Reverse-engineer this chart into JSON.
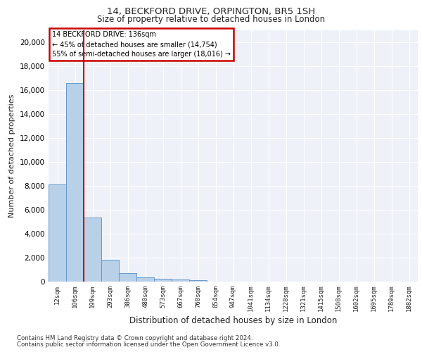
{
  "title1": "14, BECKFORD DRIVE, ORPINGTON, BR5 1SH",
  "title2": "Size of property relative to detached houses in London",
  "xlabel": "Distribution of detached houses by size in London",
  "ylabel": "Number of detached properties",
  "categories": [
    "12sqm",
    "106sqm",
    "199sqm",
    "293sqm",
    "386sqm",
    "480sqm",
    "573sqm",
    "667sqm",
    "760sqm",
    "854sqm",
    "947sqm",
    "1041sqm",
    "1134sqm",
    "1228sqm",
    "1321sqm",
    "1415sqm",
    "1508sqm",
    "1602sqm",
    "1695sqm",
    "1789sqm",
    "1882sqm"
  ],
  "values": [
    8100,
    16550,
    5350,
    1850,
    680,
    330,
    210,
    170,
    130,
    0,
    0,
    0,
    0,
    0,
    0,
    0,
    0,
    0,
    0,
    0,
    0
  ],
  "bar_color": "#b8d0e8",
  "bar_edge_color": "#6699cc",
  "annotation_title": "14 BECKFORD DRIVE: 136sqm",
  "annotation_line2": "← 45% of detached houses are smaller (14,754)",
  "annotation_line3": "55% of semi-detached houses are larger (18,016) →",
  "annotation_box_color": "#cc0000",
  "ylim": [
    0,
    21000
  ],
  "yticks": [
    0,
    2000,
    4000,
    6000,
    8000,
    10000,
    12000,
    14000,
    16000,
    18000,
    20000
  ],
  "footer1": "Contains HM Land Registry data © Crown copyright and database right 2024.",
  "footer2": "Contains public sector information licensed under the Open Government Licence v3.0.",
  "background_color": "#eef2f8",
  "grid_color": "#ffffff"
}
